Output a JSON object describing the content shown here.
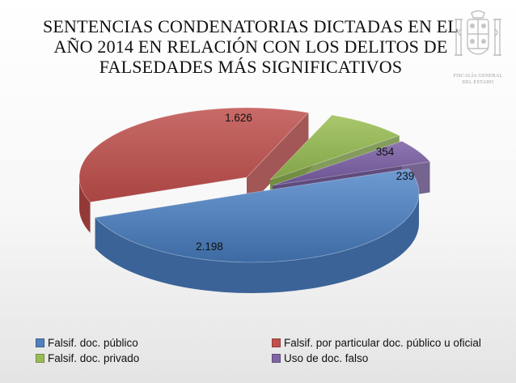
{
  "title_lines": [
    "SENTENCIAS CONDENATORIAS DICTADAS EN EL",
    "AÑO 2014 EN RELACIÓN CON LOS DELITOS DE",
    "FALSEDADES MÁS SIGNIFICATIVOS"
  ],
  "emblem_text": [
    "FISCALÍA GENERAL",
    "DEL ESTADO"
  ],
  "chart_data": {
    "type": "pie",
    "title": "SENTENCIAS CONDENATORIAS DICTADAS EN EL AÑO 2014 EN RELACIÓN CON LOS DELITOS DE FALSEDADES MÁS SIGNIFICATIVOS",
    "style": "3d-exploded",
    "legend_position": "bottom",
    "slices": [
      {
        "name": "Falsif. doc. público",
        "value": 2198,
        "label": "2.198",
        "color": "#4f81bd"
      },
      {
        "name": "Falsif. por particular doc. público u oficial",
        "value": 1626,
        "label": "1.626",
        "color": "#c0504d"
      },
      {
        "name": "Falsif. doc. privado",
        "value": 354,
        "label": "354",
        "color": "#9bbb59"
      },
      {
        "name": "Uso de doc. falso",
        "value": 239,
        "label": "239",
        "color": "#8064a2"
      }
    ]
  }
}
